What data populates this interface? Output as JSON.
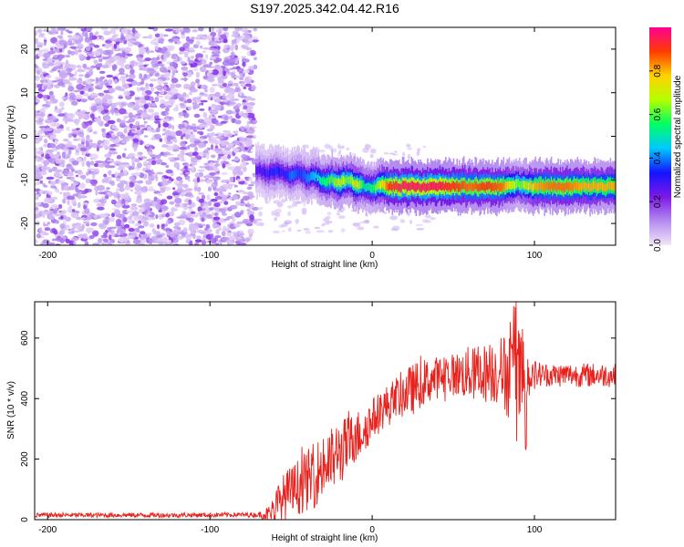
{
  "title": "S197.2025.342.04.42.R16",
  "colors": {
    "axes": "#000000",
    "snr_line": "#e8211c",
    "colormap": [
      "#f2e6f8",
      "#b48cf0",
      "#7b18e6",
      "#1414ff",
      "#00c8ff",
      "#00ff64",
      "#b4ff00",
      "#ffd200",
      "#ff3c00",
      "#ff0096"
    ]
  },
  "chart_data": [
    {
      "type": "heatmap",
      "panel": "spectrogram",
      "xlabel": "Height of straight line (km)",
      "ylabel": "Frequency (Hz)",
      "xlim": [
        -208,
        150
      ],
      "ylim": [
        -25,
        25
      ],
      "xticks": [
        -200,
        -100,
        0,
        100
      ],
      "yticks": [
        -20,
        -10,
        0,
        10,
        20
      ],
      "grid": false,
      "noise_region": {
        "x": [
          -208,
          -72
        ],
        "y": [
          -25,
          25
        ]
      },
      "ridge": {
        "x": [
          -72,
          -65,
          -60,
          -55,
          -50,
          -45,
          -40,
          -35,
          -30,
          -25,
          -20,
          -15,
          -10,
          -5,
          0,
          5,
          10,
          20,
          30,
          40,
          50,
          60,
          70,
          80,
          90,
          100,
          110,
          120,
          130,
          140,
          150
        ],
        "freq": [
          -7.5,
          -8.5,
          -8.0,
          -8.5,
          -9.0,
          -8.5,
          -9.5,
          -9.0,
          -10.5,
          -10.0,
          -10.5,
          -10.0,
          -11.0,
          -11.5,
          -12.0,
          -11.0,
          -11.5,
          -11.5,
          -11.5,
          -11.5,
          -11.5,
          -11.5,
          -11.5,
          -11.5,
          -11.0,
          -11.5,
          -11.5,
          -11.5,
          -11.5,
          -11.5,
          -11.5
        ],
        "amplitude": [
          0.25,
          0.3,
          0.35,
          0.3,
          0.4,
          0.35,
          0.4,
          0.45,
          0.55,
          0.6,
          0.7,
          0.6,
          0.75,
          0.5,
          0.55,
          0.7,
          0.9,
          0.95,
          0.95,
          0.95,
          0.9,
          0.85,
          0.9,
          0.85,
          0.6,
          0.8,
          0.85,
          0.85,
          0.8,
          0.8,
          0.8
        ]
      },
      "colorbar": {
        "label": "Normalized spectral amplitude",
        "range": [
          0,
          1
        ],
        "ticks": [
          "0.0",
          "0.2",
          "0.4",
          "0.6",
          "0.8"
        ],
        "tick_values": [
          0.0,
          0.2,
          0.4,
          0.6,
          0.8
        ]
      }
    },
    {
      "type": "line",
      "panel": "snr",
      "xlabel": "Height of straight line (km)",
      "ylabel": "SNR (10 * v/v)",
      "xlim": [
        -208,
        150
      ],
      "ylim": [
        0,
        720
      ],
      "xticks": [
        -200,
        -100,
        0,
        100
      ],
      "yticks": [
        0,
        200,
        400,
        600
      ],
      "grid": false,
      "series": [
        {
          "x": [
            -208,
            -180,
            -150,
            -120,
            -90,
            -70,
            -63,
            -60,
            -55,
            -50,
            -45,
            -40,
            -35,
            -30,
            -25,
            -20,
            -15,
            -10,
            -5,
            0,
            5,
            10,
            15,
            20,
            25,
            30,
            35,
            40,
            45,
            50,
            55,
            60,
            65,
            70,
            75,
            80,
            85,
            88,
            90,
            93,
            96,
            100,
            105,
            110,
            115,
            120,
            125,
            130,
            135,
            140,
            145,
            150
          ],
          "values": [
            15,
            15,
            15,
            15,
            16,
            16,
            20,
            40,
            70,
            90,
            110,
            130,
            150,
            175,
            195,
            220,
            245,
            270,
            300,
            330,
            360,
            380,
            400,
            420,
            430,
            450,
            460,
            470,
            475,
            480,
            480,
            485,
            480,
            485,
            490,
            490,
            480,
            470,
            460,
            470,
            490,
            480,
            480,
            478,
            478,
            480,
            478,
            478,
            478,
            478,
            478,
            475
          ],
          "spread": [
            8,
            8,
            8,
            8,
            8,
            8,
            30,
            60,
            80,
            90,
            95,
            100,
            110,
            110,
            110,
            110,
            100,
            90,
            80,
            70,
            70,
            70,
            75,
            80,
            85,
            80,
            75,
            70,
            70,
            70,
            80,
            90,
            90,
            100,
            110,
            120,
            160,
            170,
            180,
            160,
            90,
            50,
            40,
            40,
            40,
            40,
            40,
            40,
            40,
            40,
            40,
            40
          ],
          "peak_max": 720
        }
      ]
    }
  ]
}
